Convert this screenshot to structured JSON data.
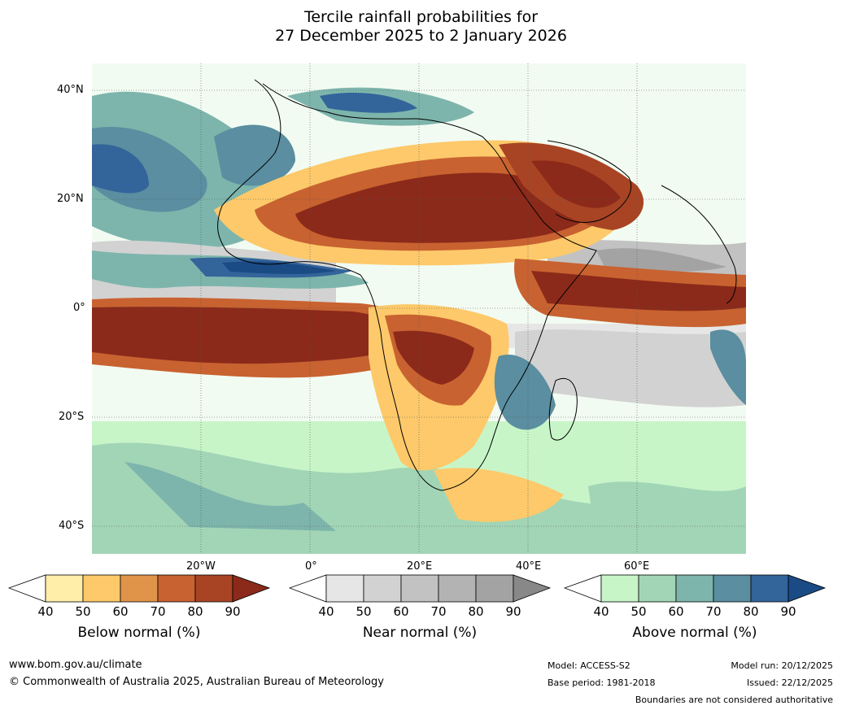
{
  "title": {
    "line1": "Tercile rainfall probabilities for",
    "line2": "27 December 2025 to 2 January 2026"
  },
  "map": {
    "lat_labels": [
      "40°N",
      "20°N",
      "0°",
      "20°S",
      "40°S"
    ],
    "lon_labels": [
      "20°W",
      "0°",
      "20°E",
      "40°E",
      "60°E"
    ]
  },
  "colorbars": [
    {
      "label": "Below normal (%)",
      "ticks": [
        "40",
        "50",
        "60",
        "70",
        "80",
        "90"
      ],
      "colors": [
        "#ffeeaa",
        "#fdc96a",
        "#e0944a",
        "#c86230",
        "#a84424",
        "#8b2a1a"
      ]
    },
    {
      "label": "Near normal (%)",
      "ticks": [
        "40",
        "50",
        "60",
        "70",
        "80",
        "90"
      ],
      "colors": [
        "#e6e6e6",
        "#d2d2d2",
        "#c2c2c2",
        "#b3b3b3",
        "#a3a3a3",
        "#888888"
      ]
    },
    {
      "label": "Above normal (%)",
      "ticks": [
        "40",
        "50",
        "60",
        "70",
        "80",
        "90"
      ],
      "colors": [
        "#c8f5c8",
        "#a2d5b6",
        "#7db5ac",
        "#5a8ea0",
        "#33649a",
        "#1a4b85"
      ]
    }
  ],
  "footer": {
    "website": "www.bom.gov.au/climate",
    "copyright": "© Commonwealth of Australia 2025, Australian Bureau of Meteorology",
    "model": "Model: ACCESS-S2",
    "base_period": "Base period: 1981-2018",
    "model_run": "Model run: 20/12/2025",
    "issued": "Issued: 22/12/2025",
    "disclaimer": "Boundaries are not considered authoritative"
  }
}
